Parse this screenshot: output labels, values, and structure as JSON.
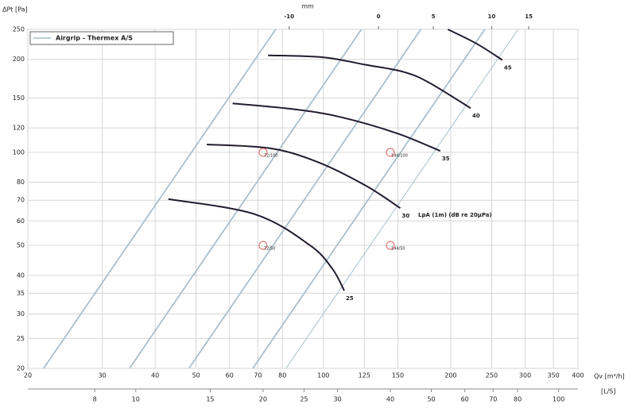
{
  "chart_data": {
    "type": "line",
    "legend": "Airgrip - Thermex A/S",
    "legend_color": "#a9bfcc",
    "x_label": "Qv [m³/h]",
    "x2_label": "[L/S]",
    "y_label": "ΔPt [Pa]",
    "top_label": "mm",
    "annotation": "LpA (1m) (dB re 20µPa)",
    "log_x": true,
    "log_y": true,
    "grid": true,
    "xlim": [
      20,
      400
    ],
    "xticks": [
      20,
      30,
      40,
      50,
      60,
      70,
      80,
      100,
      125,
      150,
      200,
      250,
      300,
      350,
      400
    ],
    "ylim": [
      20,
      250
    ],
    "yticks": [
      20,
      25,
      30,
      35,
      40,
      50,
      60,
      70,
      80,
      100,
      120,
      150,
      200,
      250
    ],
    "x2lim": [
      5.556,
      111.1
    ],
    "x2ticks": [
      8,
      10,
      15,
      20,
      25,
      30,
      40,
      50,
      60,
      70,
      80,
      100
    ],
    "top_ticks": [
      {
        "value": 83,
        "label": "-10"
      },
      {
        "value": 135,
        "label": "0"
      },
      {
        "value": 182,
        "label": "5"
      },
      {
        "value": 250,
        "label": "10"
      },
      {
        "value": 306,
        "label": "15"
      }
    ],
    "curve_color": "#231b2e",
    "curves": [
      {
        "label": 25,
        "x": [
          43,
          69,
          93,
          105,
          112
        ],
        "values": [
          70.6,
          63,
          50,
          42,
          35.7
        ]
      },
      {
        "label": 30,
        "x": [
          53,
          75,
          97,
          126,
          152
        ],
        "values": [
          106,
          103,
          93,
          78,
          66
        ]
      },
      {
        "label": 35,
        "x": [
          61,
          85,
          110,
          150,
          189
        ],
        "values": [
          144,
          138,
          130,
          115,
          101
        ]
      },
      {
        "label": 40,
        "x": [
          74,
          100,
          126,
          155,
          178,
          223
        ],
        "values": [
          206,
          203,
          192,
          182,
          168,
          139
        ]
      },
      {
        "label": 45,
        "x": [
          197,
          230,
          265
        ],
        "values": [
          250,
          225,
          199
        ]
      }
    ],
    "system_color": "#a9bfcc",
    "system_lines": [
      {
        "x": [
          21.8,
          77.1
        ],
        "values": [
          20,
          250
        ]
      },
      {
        "x": [
          34.8,
          123
        ],
        "values": [
          20,
          250
        ]
      },
      {
        "x": [
          48.1,
          170
        ],
        "values": [
          20,
          250
        ]
      },
      {
        "x": [
          68.1,
          240.8
        ],
        "values": [
          20,
          250
        ]
      },
      {
        "x": [
          81.6,
          288.6
        ],
        "values": [
          20,
          250
        ]
      }
    ],
    "points": {
      "color": "#e06060",
      "x": [
        72,
        144,
        72,
        144
      ],
      "values": [
        100,
        100,
        50,
        50
      ],
      "labels": [
        "72/100",
        "144/100",
        "72/50",
        "144/50"
      ]
    }
  }
}
